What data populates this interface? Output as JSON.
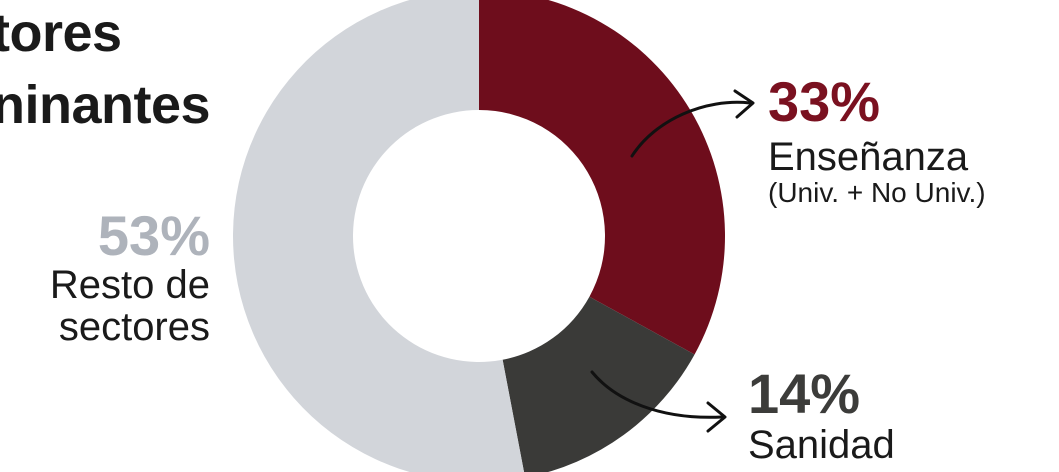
{
  "title": {
    "line1": "tores",
    "line2": "ninantes"
  },
  "chart_data": {
    "type": "pie",
    "variant": "donut",
    "slices": [
      {
        "label": "Enseñanza",
        "sublabel": "(Univ. + No Univ.)",
        "value": 33,
        "display": "33%",
        "color": "#6e0d1c"
      },
      {
        "label": "Sanidad",
        "sublabel": "",
        "value": 14,
        "display": "14%",
        "color": "#3a3a38"
      },
      {
        "label": "Resto de sectores",
        "sublabel": "",
        "value": 53,
        "display": "53%",
        "color": "#d2d5da"
      }
    ],
    "start": "top",
    "direction": "clockwise",
    "legend": "none",
    "annotations": [
      "arrow from Enseñanza slice to its label",
      "arrow from Sanidad slice to its label"
    ]
  },
  "labels": {
    "resto": {
      "pct": "53%",
      "line1": "Resto de",
      "line2": "sectores"
    },
    "ense": {
      "pct": "33%",
      "name": "Enseñanza",
      "sub": "(Univ. + No Univ.)"
    },
    "sani": {
      "pct": "14%",
      "name": "Sanidad"
    }
  },
  "colors": {
    "ense_pct": "#7a1120",
    "sani_pct": "#3c3c3a",
    "resto_pct": "#aeb3bb"
  }
}
